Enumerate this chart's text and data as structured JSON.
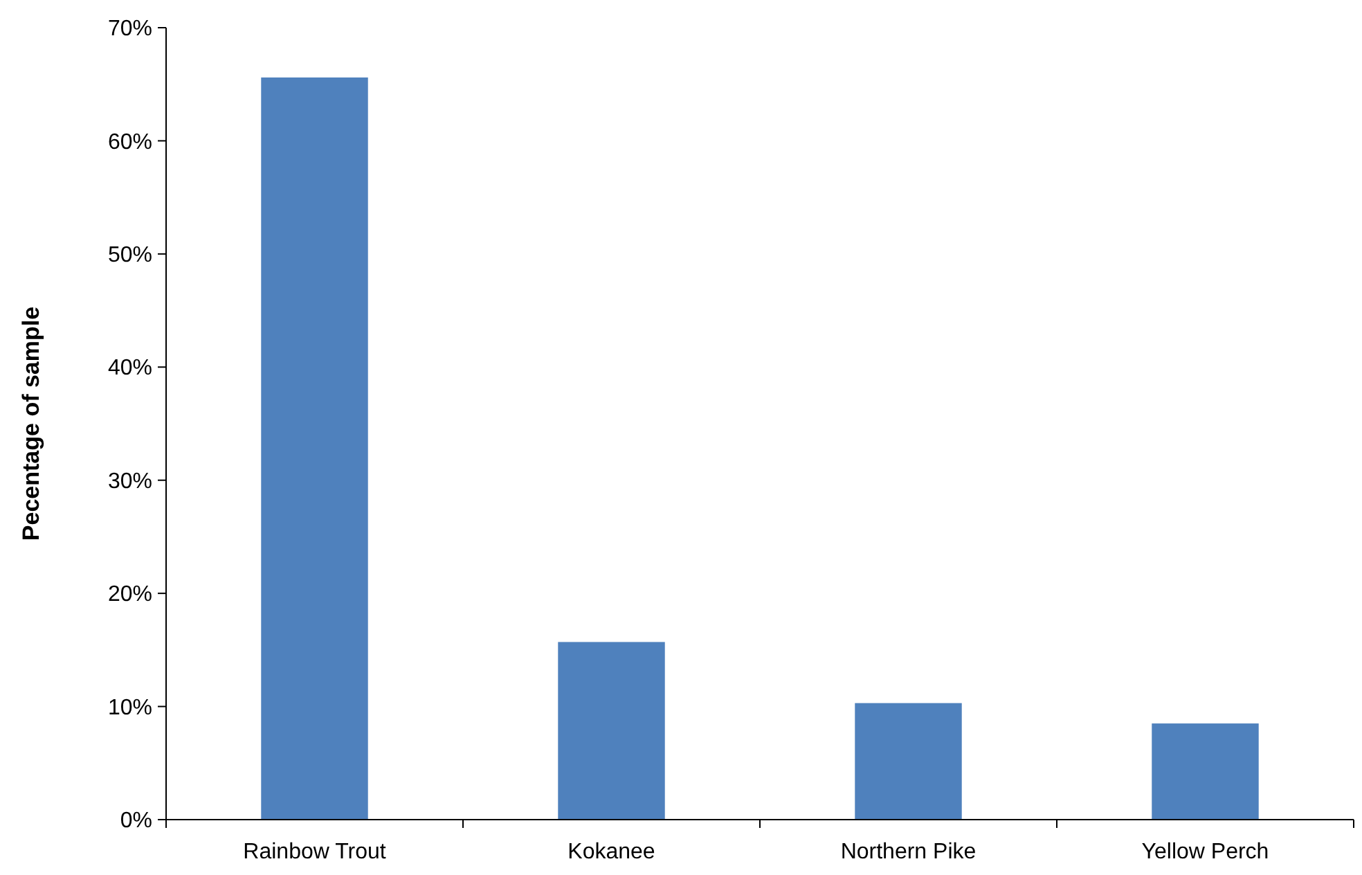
{
  "chart_data": {
    "type": "bar",
    "ylabel": "Pecentage of sample",
    "categories": [
      "Rainbow Trout",
      "Kokanee",
      "Northern Pike",
      "Yellow Perch"
    ],
    "values": [
      65.6,
      15.7,
      10.3,
      8.5
    ],
    "color": "#4f81bd",
    "ylim": [
      0,
      70
    ],
    "yticks": [
      {
        "value": 0,
        "label": "0%"
      },
      {
        "value": 10,
        "label": "10%"
      },
      {
        "value": 20,
        "label": "20%"
      },
      {
        "value": 30,
        "label": "30%"
      },
      {
        "value": 40,
        "label": "40%"
      },
      {
        "value": 50,
        "label": "50%"
      },
      {
        "value": 60,
        "label": "60%"
      },
      {
        "value": 70,
        "label": "70%"
      }
    ],
    "grid": false
  }
}
